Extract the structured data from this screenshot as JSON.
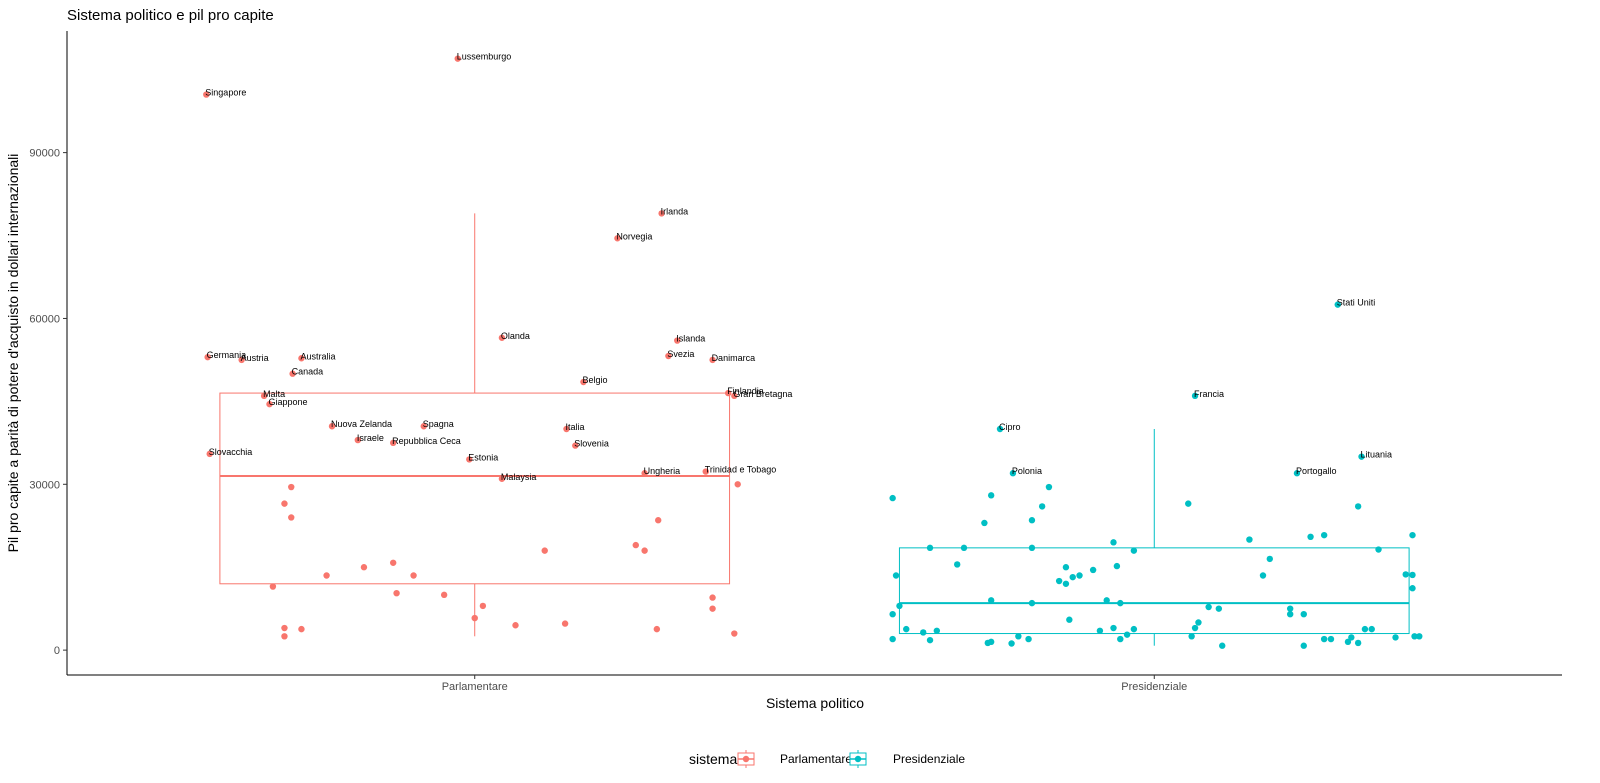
{
  "chart_data": {
    "type": "scatter",
    "subtype": "boxplot-with-jitter",
    "title": "Sistema politico e pil pro capite",
    "xlabel": "Sistema politico",
    "ylabel": "Pil pro capite a parità di potere d'acquisto in dollari internazionali",
    "categories": [
      "Parlamentare",
      "Presidenziale"
    ],
    "ylim": [
      -4500,
      112000
    ],
    "yticks": [
      0,
      30000,
      60000,
      90000
    ],
    "ytick_labels": [
      "0",
      "30000",
      "60000",
      "90000"
    ],
    "grid": false,
    "legend": {
      "title": "sistema",
      "position": "bottom",
      "entries": [
        "Parlamentare",
        "Presidenziale"
      ]
    },
    "colors": {
      "Parlamentare": "#F8766D",
      "Presidenziale": "#00BFC4",
      "axis": "#000000"
    },
    "boxes": [
      {
        "category": "Parlamentare",
        "lower_whisker": 2500,
        "q1": 12000,
        "median": 31500,
        "q3": 46500,
        "upper_whisker": 79000
      },
      {
        "category": "Presidenziale",
        "lower_whisker": 800,
        "q1": 3000,
        "median": 8500,
        "q3": 18500,
        "upper_whisker": 40000
      }
    ],
    "series": [
      {
        "name": "Parlamentare",
        "points": [
          {
            "x": -0.395,
            "y": 100500,
            "label": "Singapore"
          },
          {
            "x": -0.025,
            "y": 107000,
            "label": "Lussemburgo"
          },
          {
            "x": 0.275,
            "y": 79000,
            "label": "Irlanda"
          },
          {
            "x": 0.21,
            "y": 74500,
            "label": "Norvegia"
          },
          {
            "x": 0.04,
            "y": 56500,
            "label": "Olanda"
          },
          {
            "x": 0.298,
            "y": 56000,
            "label": "Islanda"
          },
          {
            "x": -0.393,
            "y": 53000,
            "label": "Germania"
          },
          {
            "x": -0.343,
            "y": 52500,
            "label": "Austria"
          },
          {
            "x": -0.255,
            "y": 52800,
            "label": "Australia"
          },
          {
            "x": 0.285,
            "y": 53200,
            "label": "Svezia"
          },
          {
            "x": 0.35,
            "y": 52500,
            "label": "Danimarca"
          },
          {
            "x": -0.268,
            "y": 50000,
            "label": "Canada"
          },
          {
            "x": 0.16,
            "y": 48500,
            "label": "Belgio"
          },
          {
            "x": 0.373,
            "y": 46500,
            "label": "Finlandia"
          },
          {
            "x": 0.382,
            "y": 46000,
            "label": "Gran Bretagna"
          },
          {
            "x": -0.31,
            "y": 46000,
            "label": "Malta"
          },
          {
            "x": -0.302,
            "y": 44500,
            "label": "Giappone"
          },
          {
            "x": -0.21,
            "y": 40500,
            "label": "Nuova Zelanda"
          },
          {
            "x": -0.075,
            "y": 40500,
            "label": "Spagna"
          },
          {
            "x": 0.135,
            "y": 40000,
            "label": "Italia"
          },
          {
            "x": -0.172,
            "y": 38000,
            "label": "Israele"
          },
          {
            "x": -0.12,
            "y": 37500,
            "label": "Repubblica Ceca"
          },
          {
            "x": 0.148,
            "y": 37000,
            "label": "Slovenia"
          },
          {
            "x": -0.39,
            "y": 35500,
            "label": "Slovacchia"
          },
          {
            "x": -0.008,
            "y": 34500,
            "label": "Estonia"
          },
          {
            "x": 0.25,
            "y": 32000,
            "label": "Ungheria"
          },
          {
            "x": 0.34,
            "y": 32300,
            "label": "Trinidad e Tobago"
          },
          {
            "x": 0.04,
            "y": 31000,
            "label": "Malaysia"
          },
          {
            "x": 0.387,
            "y": 30000,
            "label": ""
          },
          {
            "x": -0.27,
            "y": 29500,
            "label": ""
          },
          {
            "x": -0.28,
            "y": 26500,
            "label": ""
          },
          {
            "x": -0.27,
            "y": 24000,
            "label": ""
          },
          {
            "x": 0.27,
            "y": 23500,
            "label": ""
          },
          {
            "x": 0.237,
            "y": 19000,
            "label": ""
          },
          {
            "x": 0.25,
            "y": 18000,
            "label": ""
          },
          {
            "x": 0.103,
            "y": 18000,
            "label": ""
          },
          {
            "x": -0.12,
            "y": 15800,
            "label": ""
          },
          {
            "x": -0.163,
            "y": 15000,
            "label": ""
          },
          {
            "x": -0.09,
            "y": 13500,
            "label": ""
          },
          {
            "x": -0.218,
            "y": 13500,
            "label": ""
          },
          {
            "x": -0.297,
            "y": 11500,
            "label": ""
          },
          {
            "x": -0.115,
            "y": 10300,
            "label": ""
          },
          {
            "x": -0.045,
            "y": 10000,
            "label": ""
          },
          {
            "x": 0.35,
            "y": 9500,
            "label": ""
          },
          {
            "x": 0.35,
            "y": 7500,
            "label": ""
          },
          {
            "x": 0.012,
            "y": 8000,
            "label": ""
          },
          {
            "x": 0.0,
            "y": 5800,
            "label": ""
          },
          {
            "x": 0.133,
            "y": 4800,
            "label": ""
          },
          {
            "x": 0.06,
            "y": 4500,
            "label": ""
          },
          {
            "x": 0.268,
            "y": 3800,
            "label": ""
          },
          {
            "x": -0.28,
            "y": 4000,
            "label": ""
          },
          {
            "x": -0.255,
            "y": 3800,
            "label": ""
          },
          {
            "x": -0.28,
            "y": 2500,
            "label": ""
          },
          {
            "x": 0.382,
            "y": 3000,
            "label": ""
          }
        ]
      },
      {
        "name": "Presidenziale",
        "points": [
          {
            "x": 0.27,
            "y": 62500,
            "label": "Stati Uniti"
          },
          {
            "x": 0.06,
            "y": 46000,
            "label": "Francia"
          },
          {
            "x": -0.227,
            "y": 40000,
            "label": "Cipro"
          },
          {
            "x": 0.305,
            "y": 35000,
            "label": "Lituania"
          },
          {
            "x": -0.208,
            "y": 32000,
            "label": "Polonia"
          },
          {
            "x": 0.21,
            "y": 32000,
            "label": "Portogallo"
          },
          {
            "x": -0.155,
            "y": 29500,
            "label": ""
          },
          {
            "x": -0.385,
            "y": 27500,
            "label": ""
          },
          {
            "x": -0.24,
            "y": 28000,
            "label": ""
          },
          {
            "x": 0.05,
            "y": 26500,
            "label": ""
          },
          {
            "x": -0.165,
            "y": 26000,
            "label": ""
          },
          {
            "x": 0.3,
            "y": 26000,
            "label": ""
          },
          {
            "x": -0.18,
            "y": 23500,
            "label": ""
          },
          {
            "x": -0.25,
            "y": 23000,
            "label": ""
          },
          {
            "x": 0.38,
            "y": 20800,
            "label": ""
          },
          {
            "x": 0.25,
            "y": 20800,
            "label": ""
          },
          {
            "x": 0.23,
            "y": 20500,
            "label": ""
          },
          {
            "x": 0.14,
            "y": 20000,
            "label": ""
          },
          {
            "x": -0.06,
            "y": 19500,
            "label": ""
          },
          {
            "x": -0.28,
            "y": 18500,
            "label": ""
          },
          {
            "x": -0.33,
            "y": 18500,
            "label": ""
          },
          {
            "x": -0.18,
            "y": 18500,
            "label": ""
          },
          {
            "x": 0.33,
            "y": 18200,
            "label": ""
          },
          {
            "x": -0.03,
            "y": 18000,
            "label": ""
          },
          {
            "x": 0.17,
            "y": 16500,
            "label": ""
          },
          {
            "x": -0.29,
            "y": 15500,
            "label": ""
          },
          {
            "x": -0.055,
            "y": 15200,
            "label": ""
          },
          {
            "x": -0.13,
            "y": 15000,
            "label": ""
          },
          {
            "x": -0.09,
            "y": 14500,
            "label": ""
          },
          {
            "x": -0.11,
            "y": 13500,
            "label": ""
          },
          {
            "x": 0.16,
            "y": 13500,
            "label": ""
          },
          {
            "x": 0.37,
            "y": 13700,
            "label": ""
          },
          {
            "x": 0.38,
            "y": 13600,
            "label": ""
          },
          {
            "x": -0.38,
            "y": 13500,
            "label": ""
          },
          {
            "x": -0.12,
            "y": 13200,
            "label": ""
          },
          {
            "x": -0.14,
            "y": 12500,
            "label": ""
          },
          {
            "x": -0.13,
            "y": 12000,
            "label": ""
          },
          {
            "x": 0.38,
            "y": 11200,
            "label": ""
          },
          {
            "x": -0.24,
            "y": 9000,
            "label": ""
          },
          {
            "x": -0.07,
            "y": 9000,
            "label": ""
          },
          {
            "x": -0.05,
            "y": 8500,
            "label": ""
          },
          {
            "x": -0.18,
            "y": 8500,
            "label": ""
          },
          {
            "x": -0.375,
            "y": 8000,
            "label": ""
          },
          {
            "x": 0.08,
            "y": 7800,
            "label": ""
          },
          {
            "x": 0.095,
            "y": 7500,
            "label": ""
          },
          {
            "x": 0.2,
            "y": 7500,
            "label": ""
          },
          {
            "x": 0.2,
            "y": 6500,
            "label": ""
          },
          {
            "x": 0.22,
            "y": 6500,
            "label": ""
          },
          {
            "x": -0.385,
            "y": 6500,
            "label": ""
          },
          {
            "x": -0.125,
            "y": 5500,
            "label": ""
          },
          {
            "x": 0.065,
            "y": 5000,
            "label": ""
          },
          {
            "x": 0.06,
            "y": 4000,
            "label": ""
          },
          {
            "x": -0.365,
            "y": 3800,
            "label": ""
          },
          {
            "x": -0.06,
            "y": 4000,
            "label": ""
          },
          {
            "x": -0.03,
            "y": 3800,
            "label": ""
          },
          {
            "x": -0.08,
            "y": 3500,
            "label": ""
          },
          {
            "x": 0.31,
            "y": 3800,
            "label": ""
          },
          {
            "x": 0.32,
            "y": 3800,
            "label": ""
          },
          {
            "x": -0.34,
            "y": 3200,
            "label": ""
          },
          {
            "x": -0.32,
            "y": 3500,
            "label": ""
          },
          {
            "x": -0.04,
            "y": 2800,
            "label": ""
          },
          {
            "x": -0.2,
            "y": 2500,
            "label": ""
          },
          {
            "x": 0.055,
            "y": 2500,
            "label": ""
          },
          {
            "x": -0.385,
            "y": 2000,
            "label": ""
          },
          {
            "x": -0.185,
            "y": 2000,
            "label": ""
          },
          {
            "x": -0.05,
            "y": 2000,
            "label": ""
          },
          {
            "x": 0.25,
            "y": 2000,
            "label": ""
          },
          {
            "x": 0.26,
            "y": 2000,
            "label": ""
          },
          {
            "x": 0.29,
            "y": 2300,
            "label": ""
          },
          {
            "x": 0.355,
            "y": 2300,
            "label": ""
          },
          {
            "x": 0.383,
            "y": 2500,
            "label": ""
          },
          {
            "x": 0.39,
            "y": 2500,
            "label": ""
          },
          {
            "x": -0.33,
            "y": 1800,
            "label": ""
          },
          {
            "x": -0.24,
            "y": 1500,
            "label": ""
          },
          {
            "x": -0.21,
            "y": 1200,
            "label": ""
          },
          {
            "x": 0.285,
            "y": 1500,
            "label": ""
          },
          {
            "x": 0.3,
            "y": 1300,
            "label": ""
          },
          {
            "x": -0.245,
            "y": 1300,
            "label": ""
          },
          {
            "x": 0.1,
            "y": 800,
            "label": ""
          },
          {
            "x": 0.22,
            "y": 800,
            "label": ""
          }
        ]
      }
    ]
  }
}
